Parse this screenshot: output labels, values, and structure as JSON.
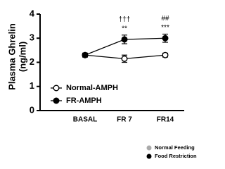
{
  "chart_data": {
    "type": "line",
    "y_label": [
      "Plasma Ghrelin",
      "(ng/ml)"
    ],
    "categories": [
      "BASAL",
      "FR 7",
      "FR14"
    ],
    "series": [
      {
        "name": "Normal-AMPH",
        "color": "#000000",
        "fill": "#ffffff",
        "values": [
          2.3,
          2.15,
          2.3
        ],
        "errors": [
          0.08,
          0.15,
          0.08
        ]
      },
      {
        "name": "FR-AMPH",
        "color": "#000000",
        "fill": "#000000",
        "values": [
          2.3,
          2.95,
          3.0
        ],
        "errors": [
          0.08,
          0.18,
          0.17
        ]
      }
    ],
    "ylim": [
      0,
      4
    ],
    "yticks": [
      0,
      1,
      2,
      3,
      4
    ],
    "annotations": [
      {
        "category": "FR 7",
        "lines": [
          "†††",
          "**"
        ]
      },
      {
        "category": "FR14",
        "lines": [
          "##",
          "***"
        ]
      }
    ],
    "group_legend": [
      {
        "name": "Normal Feeding",
        "color": "#aaaaaa"
      },
      {
        "name": "Food Restriction",
        "color": "#000000"
      }
    ]
  }
}
